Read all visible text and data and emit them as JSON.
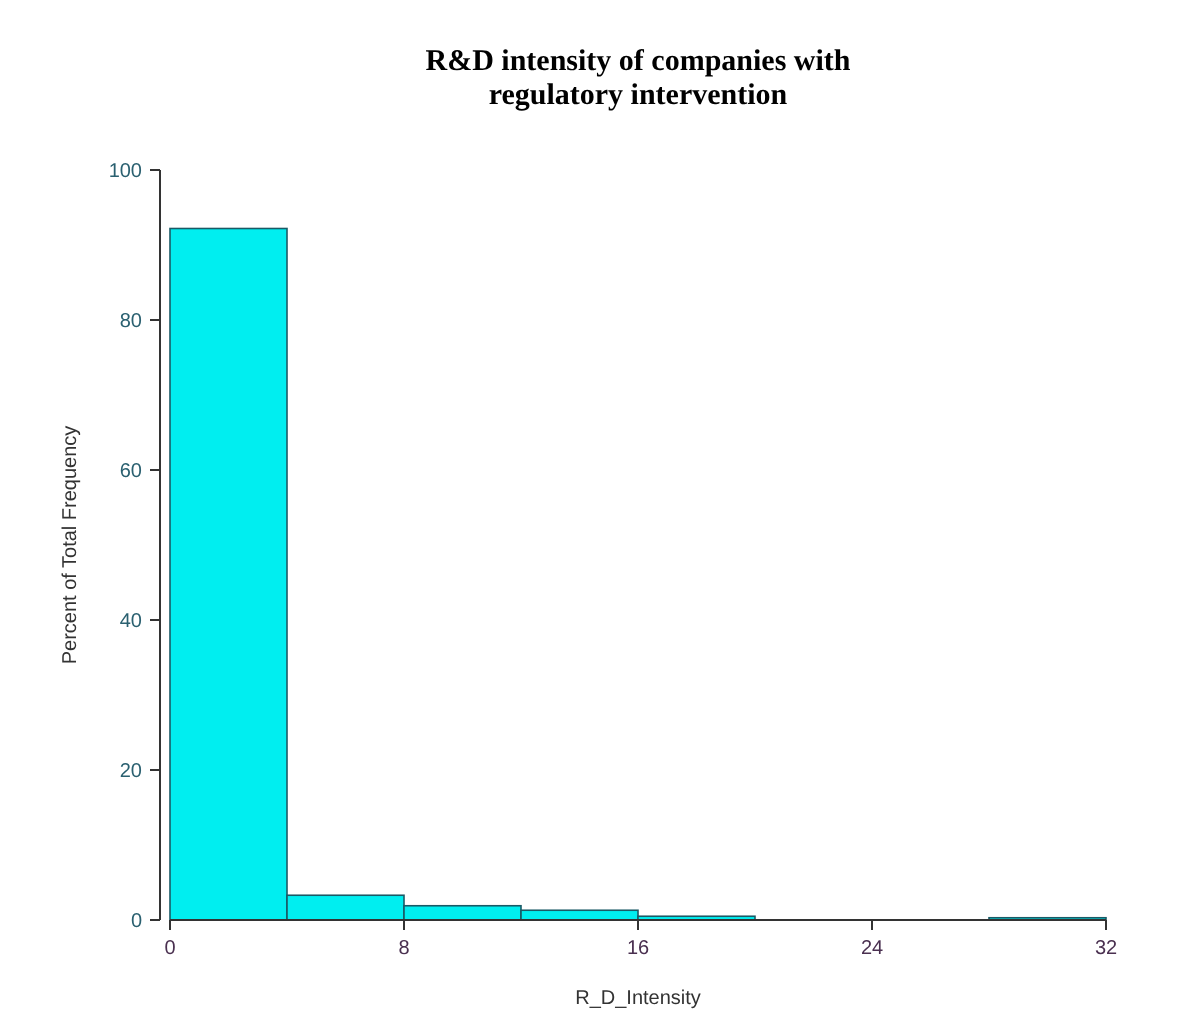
{
  "chart_data": {
    "type": "histogram",
    "title": "R&D intensity of companies with regulatory intervention",
    "xlabel": "R_D_Intensity",
    "ylabel": "Percent of Total Frequency",
    "bins": [
      0,
      4,
      8,
      12,
      16,
      20,
      24,
      28,
      32
    ],
    "values": [
      92.2,
      3.3,
      1.9,
      1.3,
      0.5,
      0,
      0,
      0.3
    ],
    "color": "#00eef0",
    "xlim": [
      0,
      32
    ],
    "xticks": [
      0,
      8,
      16,
      24,
      32
    ],
    "ylim": [
      0,
      100
    ],
    "yticks": [
      0,
      20,
      40,
      60,
      80,
      100
    ],
    "grid": false
  }
}
